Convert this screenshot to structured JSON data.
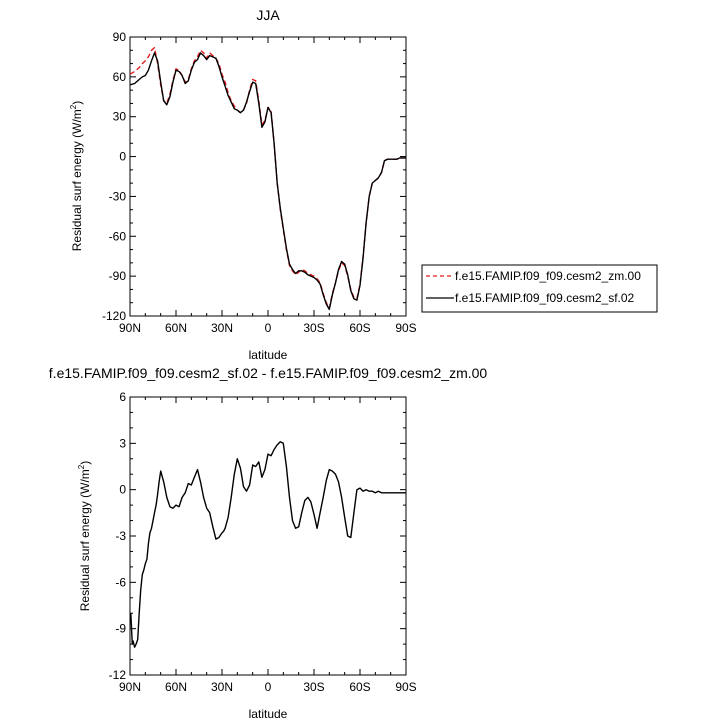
{
  "chart_data": [
    {
      "type": "line",
      "title": "JJA",
      "xlabel": "latitude",
      "ylabel": "Residual surf energy (W/m",
      "ylabel_sup": "2",
      "ylabel_close": ")",
      "xlim": [
        90,
        -90
      ],
      "ylim": [
        -120,
        90
      ],
      "xticks": [
        90,
        60,
        30,
        0,
        -30,
        -60,
        -90
      ],
      "xtick_labels": [
        "90N",
        "60N",
        "30N",
        "0",
        "30S",
        "60S",
        "90S"
      ],
      "yticks": [
        90,
        60,
        30,
        0,
        -30,
        -60,
        -90,
        -120
      ],
      "ytick_labels": [
        "90",
        "60",
        "30",
        "0",
        "-30",
        "-60",
        "-90",
        "-120"
      ],
      "legend": "right",
      "series": [
        {
          "name": "f.e15.FAMIP.f09_f09.cesm2_zm.00",
          "color": "#e41a1c",
          "dash": true,
          "x": [
            90,
            87,
            84,
            82,
            80,
            78,
            76,
            74,
            72,
            70,
            68,
            66,
            64,
            62,
            60,
            58,
            56,
            54,
            52,
            50,
            48,
            46,
            44,
            42,
            40,
            38,
            36,
            34,
            32,
            30,
            28,
            26,
            24,
            22,
            20,
            18,
            16,
            14,
            12,
            10,
            8,
            6,
            4,
            2,
            0,
            -2,
            -4,
            -6,
            -8,
            -10,
            -12,
            -14,
            -16,
            -18,
            -20,
            -22,
            -24,
            -26,
            -28,
            -30,
            -32,
            -34,
            -36,
            -38,
            -40,
            -42,
            -44,
            -46,
            -48,
            -50,
            -52,
            -54,
            -56,
            -58,
            -60,
            -62,
            -64,
            -66,
            -68,
            -70,
            -72,
            -74,
            -76,
            -78,
            -80,
            -82,
            -84,
            -86,
            -88,
            -90
          ],
          "y": [
            62,
            64,
            67,
            70,
            72,
            75,
            80,
            82,
            70,
            54,
            42,
            40,
            47,
            57,
            66,
            65,
            61,
            56,
            58,
            66,
            72,
            75,
            80,
            78,
            74,
            78,
            76,
            74,
            70,
            62,
            56,
            48,
            42,
            38,
            35,
            33,
            35,
            40,
            50,
            58,
            57,
            42,
            24,
            27,
            37,
            34,
            10,
            -20,
            -40,
            -55,
            -70,
            -82,
            -86,
            -89,
            -87,
            -85,
            -86,
            -88,
            -89,
            -90,
            -92,
            -95,
            -103,
            -110,
            -114,
            -103,
            -95,
            -86,
            -80,
            -82,
            -90,
            -100,
            -106,
            -107,
            -96,
            -75,
            -50,
            -30,
            -20,
            -18,
            -16,
            -12,
            -3,
            -2,
            -2,
            -2,
            -2,
            -1,
            -1,
            -1
          ]
        },
        {
          "name": "f.e15.FAMIP.f09_f09.cesm2_sf.02",
          "color": "#000000",
          "dash": false,
          "x": [
            90,
            87,
            84,
            82,
            80,
            78,
            76,
            74,
            72,
            70,
            68,
            66,
            64,
            62,
            60,
            58,
            56,
            54,
            52,
            50,
            48,
            46,
            44,
            42,
            40,
            38,
            36,
            34,
            32,
            30,
            28,
            26,
            24,
            22,
            20,
            18,
            16,
            14,
            12,
            10,
            8,
            6,
            4,
            2,
            0,
            -2,
            -4,
            -6,
            -8,
            -10,
            -12,
            -14,
            -16,
            -18,
            -20,
            -22,
            -24,
            -26,
            -28,
            -30,
            -32,
            -34,
            -36,
            -38,
            -40,
            -42,
            -44,
            -46,
            -48,
            -50,
            -52,
            -54,
            -56,
            -58,
            -60,
            -62,
            -64,
            -66,
            -68,
            -70,
            -72,
            -74,
            -76,
            -78,
            -80,
            -82,
            -84,
            -86,
            -88,
            -90
          ],
          "y": [
            54,
            55,
            58,
            60,
            61,
            65,
            72,
            78,
            72,
            56,
            42,
            39,
            45,
            56,
            65,
            64,
            61,
            55,
            57,
            65,
            71,
            73,
            78,
            76,
            73,
            76,
            75,
            74,
            68,
            60,
            53,
            46,
            41,
            36,
            35,
            33,
            35,
            41,
            49,
            56,
            55,
            40,
            22,
            26,
            37,
            33,
            10,
            -20,
            -39,
            -54,
            -69,
            -81,
            -85,
            -88,
            -86,
            -86,
            -87,
            -89,
            -90,
            -91,
            -93,
            -96,
            -104,
            -111,
            -115,
            -104,
            -95,
            -85,
            -79,
            -81,
            -89,
            -101,
            -107,
            -108,
            -97,
            -76,
            -50,
            -30,
            -20,
            -18,
            -16,
            -12,
            -3,
            -2,
            -2,
            -2,
            -2,
            -1,
            -1,
            -1
          ]
        }
      ]
    },
    {
      "type": "line",
      "title": "f.e15.FAMIP.f09_f09.cesm2_sf.02 - f.e15.FAMIP.f09_f09.cesm2_zm.00",
      "xlabel": "latitude",
      "ylabel": "Residual surf energy (W/m",
      "ylabel_sup": "2",
      "ylabel_close": ")",
      "xlim": [
        90,
        -90
      ],
      "ylim": [
        -12,
        6
      ],
      "xticks": [
        90,
        60,
        30,
        0,
        -30,
        -60,
        -90
      ],
      "xtick_labels": [
        "90N",
        "60N",
        "30N",
        "0",
        "30S",
        "60S",
        "90S"
      ],
      "yticks": [
        6,
        3,
        0,
        -3,
        -6,
        -9,
        -12
      ],
      "ytick_labels": [
        "6",
        "3",
        "0",
        "-3",
        "-6",
        "-9",
        "-12"
      ],
      "series": [
        {
          "color": "#000000",
          "dash": false,
          "x": [
            89.5,
            88.5,
            88,
            87,
            86,
            85,
            84,
            83,
            82,
            81,
            80,
            79,
            78,
            77,
            76,
            75,
            74,
            73,
            72,
            71,
            70,
            68,
            66,
            64,
            62,
            60,
            58,
            56,
            54,
            52,
            50,
            48,
            46,
            44,
            42,
            40,
            38,
            36,
            34,
            32,
            30,
            29,
            28,
            26,
            24,
            22,
            20,
            18,
            16,
            14,
            12,
            10,
            8,
            6,
            4,
            2,
            0,
            -2,
            -4,
            -6,
            -8,
            -10,
            -12,
            -14,
            -16,
            -18,
            -20,
            -22,
            -24,
            -26,
            -28,
            -30,
            -32,
            -34,
            -36,
            -38,
            -40,
            -42,
            -44,
            -46,
            -48,
            -50,
            -52,
            -54,
            -56,
            -58,
            -60,
            -62,
            -64,
            -66,
            -68,
            -70,
            -72,
            -74,
            -76,
            -78,
            -80,
            -82,
            -84,
            -86,
            -88,
            -90
          ],
          "y": [
            -8,
            -10,
            -9.8,
            -10.2,
            -10,
            -9.7,
            -8,
            -6.5,
            -5.5,
            -5.2,
            -4.8,
            -4.5,
            -3.5,
            -2.8,
            -2.5,
            -2,
            -1.5,
            -1,
            -0.3,
            0.5,
            1.2,
            0.5,
            -0.5,
            -1.1,
            -1.2,
            -1,
            -1.1,
            -0.5,
            -0.2,
            0.4,
            0.3,
            0.8,
            1.3,
            0.5,
            -0.5,
            -1.2,
            -1.5,
            -2.4,
            -3.2,
            -3.1,
            -2.8,
            -2.7,
            -2.5,
            -1.8,
            -0.5,
            1,
            2,
            1.4,
            0.2,
            -0.1,
            0.3,
            1.6,
            1.5,
            1.8,
            0.8,
            1.3,
            2.3,
            2.2,
            2.6,
            2.9,
            3.1,
            3,
            1.5,
            -0.5,
            -2,
            -2.5,
            -2.4,
            -1.5,
            -0.7,
            -0.5,
            -0.8,
            -1.6,
            -2.5,
            -1.5,
            -0.5,
            0.6,
            1.3,
            1.2,
            1,
            0.5,
            -0.5,
            -1.8,
            -3,
            -3.1,
            -1.5,
            0,
            0.1,
            -0.1,
            0,
            -0.1,
            -0.1,
            -0.2,
            -0.1,
            -0.2,
            -0.2,
            -0.2,
            -0.2,
            -0.2,
            -0.2,
            -0.2,
            -0.2,
            -0.2
          ]
        }
      ]
    }
  ]
}
